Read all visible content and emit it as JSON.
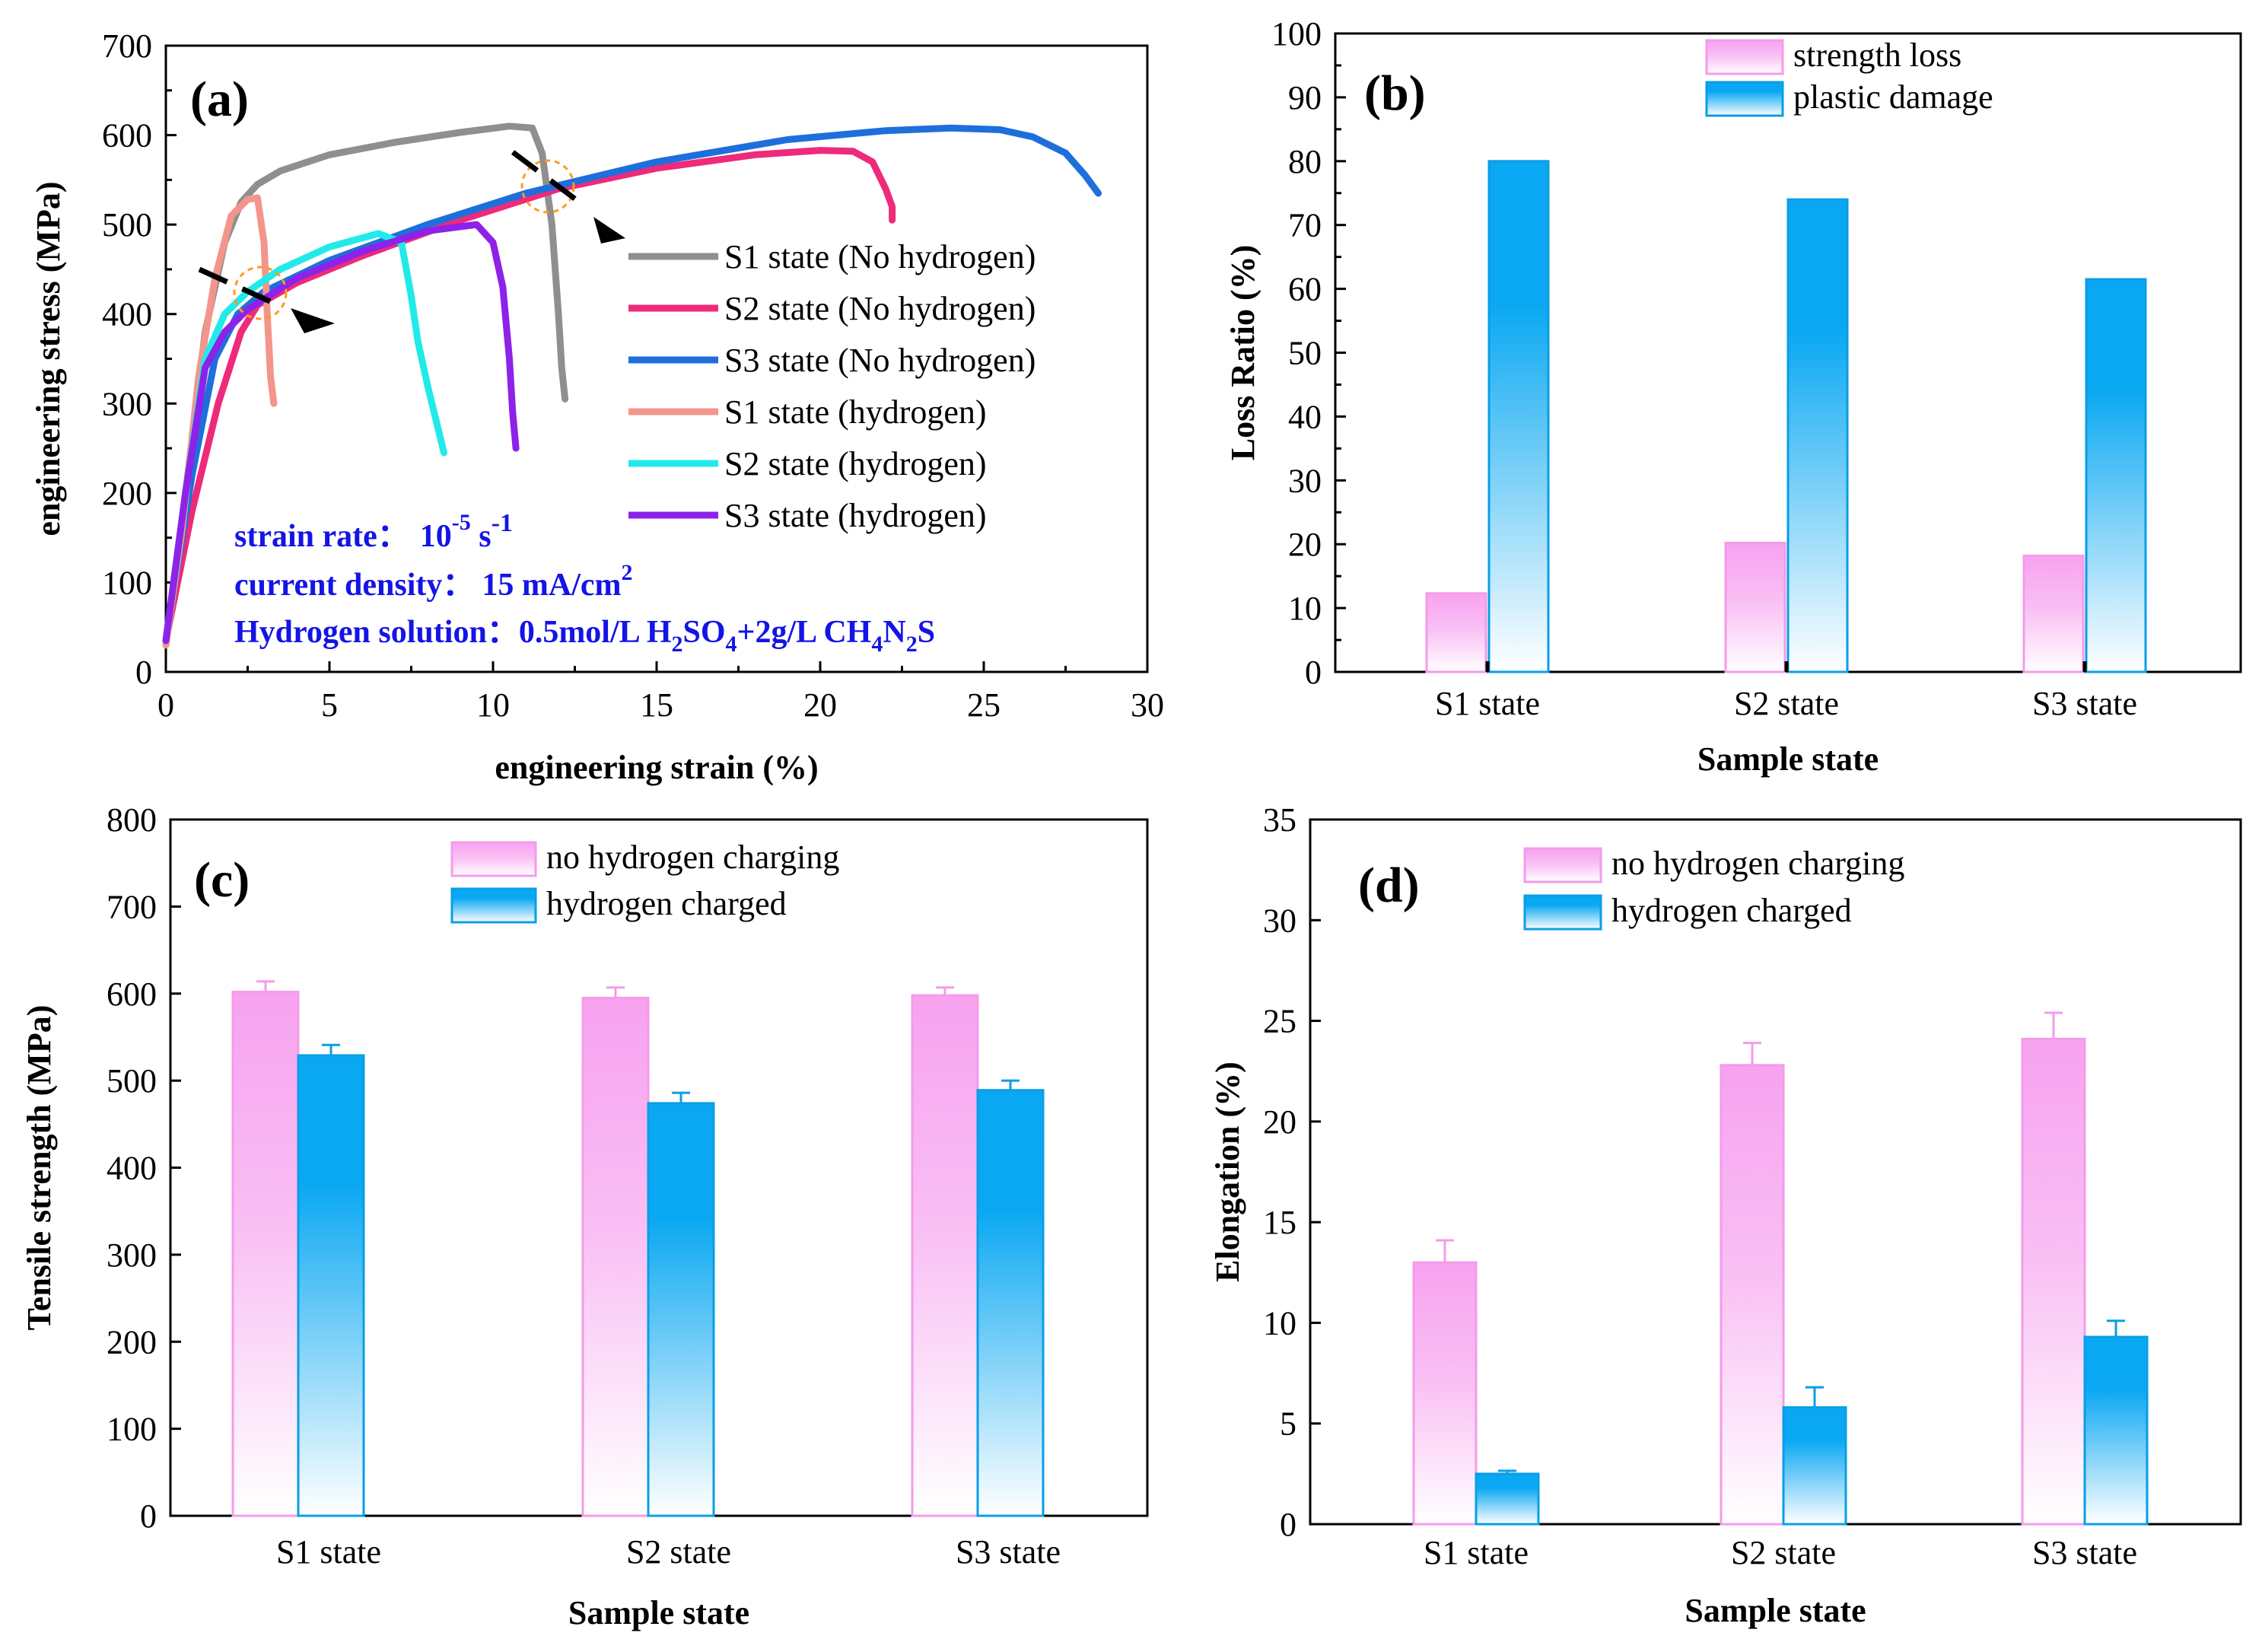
{
  "chart_data": [
    {
      "id": "a",
      "type": "line",
      "panel_label": "(a)",
      "xlabel": "engineering strain (%)",
      "ylabel": "engineering stress (MPa)",
      "xlim": [
        0,
        30
      ],
      "ylim": [
        0,
        700
      ],
      "xticks": [
        "0",
        "5",
        "10",
        "15",
        "20",
        "25",
        "30"
      ],
      "yticks": [
        "0",
        "100",
        "200",
        "300",
        "400",
        "500",
        "600",
        "700"
      ],
      "legend_position": "right",
      "series": [
        {
          "name": "S1 state (No hydrogen)",
          "color": "#8f8f8f",
          "x": [
            0,
            0.6,
            1.2,
            1.8,
            2.3,
            2.8,
            3.5,
            5,
            7,
            9,
            10.5,
            11.2,
            11.5,
            11.8,
            12.0,
            12.1,
            12.2
          ],
          "y": [
            30,
            200,
            380,
            480,
            525,
            545,
            560,
            578,
            592,
            603,
            610,
            608,
            580,
            500,
            400,
            340,
            305
          ]
        },
        {
          "name": "S2 state (No hydrogen)",
          "color": "#ee2a7b",
          "x": [
            0,
            0.8,
            1.6,
            2.3,
            2.8,
            4,
            6,
            9,
            12,
            15,
            18,
            20,
            21,
            21.6,
            22,
            22.2,
            22.2
          ],
          "y": [
            35,
            180,
            300,
            380,
            410,
            435,
            465,
            505,
            540,
            563,
            578,
            583,
            582,
            570,
            540,
            520,
            505
          ]
        },
        {
          "name": "S3 state (No hydrogen)",
          "color": "#1e6fdc",
          "x": [
            0,
            0.8,
            1.5,
            2.2,
            3,
            5,
            8,
            11,
            15,
            19,
            22,
            24,
            25.5,
            26.5,
            27.5,
            28.1,
            28.5
          ],
          "y": [
            35,
            220,
            350,
            400,
            425,
            460,
            500,
            535,
            570,
            595,
            605,
            608,
            606,
            598,
            580,
            555,
            535
          ]
        },
        {
          "name": "S1 state (hydrogen)",
          "color": "#f4958c",
          "x": [
            0,
            0.5,
            1.0,
            1.5,
            2.0,
            2.5,
            2.8,
            3.0,
            3.1,
            3.2,
            3.3
          ],
          "y": [
            30,
            160,
            330,
            440,
            510,
            528,
            530,
            480,
            400,
            330,
            300
          ]
        },
        {
          "name": "S2 state (hydrogen)",
          "color": "#22eaea",
          "x": [
            0,
            0.6,
            1.2,
            1.8,
            2.5,
            3.5,
            5,
            6.5,
            7.2,
            7.5,
            7.7,
            8.0,
            8.3,
            8.5
          ],
          "y": [
            35,
            200,
            350,
            400,
            425,
            450,
            475,
            490,
            480,
            420,
            370,
            320,
            275,
            245
          ]
        },
        {
          "name": "S3 state (hydrogen)",
          "color": "#8d22e8",
          "x": [
            0,
            0.6,
            1.2,
            1.8,
            2.5,
            4,
            6,
            8,
            9.5,
            10.0,
            10.3,
            10.5,
            10.6,
            10.7
          ],
          "y": [
            35,
            200,
            340,
            380,
            405,
            440,
            470,
            493,
            500,
            480,
            430,
            350,
            290,
            250
          ]
        }
      ],
      "annotations": [
        {
          "label": "strain rate",
          "value": "10",
          "exp": "-5",
          "unit": " s",
          "unit_sup": "-1"
        },
        {
          "label": "current density",
          "value": "15 mA/cm",
          "exp": "2"
        },
        {
          "label": "Hydrogen solution",
          "value": "0.5mol/L H",
          "s1": "2",
          "t1": "SO",
          "s2": "4",
          "t2": "+2g/L CH",
          "s3": "4",
          "t3": "N",
          "s4": "2",
          "t4": "S"
        }
      ],
      "separator": "："
    },
    {
      "id": "b",
      "type": "bar",
      "panel_label": "(b)",
      "xlabel": "Sample state",
      "ylabel": "Loss Ratio (%)",
      "ylim": [
        0,
        100
      ],
      "yticks": [
        "0",
        "10",
        "20",
        "30",
        "40",
        "50",
        "60",
        "70",
        "80",
        "90",
        "100"
      ],
      "categories": [
        "S1 state",
        "S2 state",
        "S3 state"
      ],
      "legend_position": "top-center",
      "series": [
        {
          "name": "strength loss",
          "color": "#f7a2f0",
          "values": [
            12.3,
            20.2,
            18.2
          ]
        },
        {
          "name": "plastic damage",
          "color": "#0aa8f2",
          "values": [
            80,
            74,
            61.5
          ]
        }
      ]
    },
    {
      "id": "c",
      "type": "bar",
      "panel_label": "(c)",
      "xlabel": "Sample state",
      "ylabel": "Tensile strength (MPa)",
      "ylim": [
        0,
        800
      ],
      "yticks": [
        "0",
        "100",
        "200",
        "300",
        "400",
        "500",
        "600",
        "700",
        "800"
      ],
      "categories": [
        "S1 state",
        "S2 state",
        "S3 state"
      ],
      "legend_position": "top-center",
      "series": [
        {
          "name": "no hydrogen charging",
          "color": "#f7a2f0",
          "values": [
            602,
            595,
            598
          ],
          "errors": [
            12,
            12,
            9
          ]
        },
        {
          "name": "hydrogen charged",
          "color": "#0aa8f2",
          "values": [
            529,
            474,
            489
          ],
          "errors": [
            12,
            12,
            11
          ]
        }
      ]
    },
    {
      "id": "d",
      "type": "bar",
      "panel_label": "(d)",
      "xlabel": "Sample state",
      "ylabel": "Elongation  (%)",
      "ylim": [
        0,
        35
      ],
      "yticks": [
        "0",
        "5",
        "10",
        "15",
        "20",
        "25",
        "30",
        "35"
      ],
      "categories": [
        "S1 state",
        "S2 state",
        "S3 state"
      ],
      "legend_position": "top-center",
      "series": [
        {
          "name": "no hydrogen charging",
          "color": "#f7a2f0",
          "values": [
            13,
            22.8,
            24.1
          ],
          "errors": [
            1.1,
            1.1,
            1.3
          ]
        },
        {
          "name": "hydrogen charged",
          "color": "#0aa8f2",
          "values": [
            2.5,
            5.8,
            9.3
          ],
          "errors": [
            0.15,
            1.0,
            0.8
          ]
        }
      ]
    }
  ]
}
